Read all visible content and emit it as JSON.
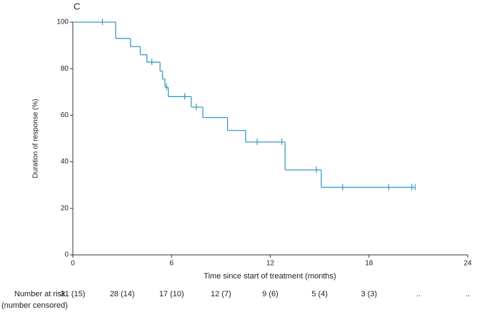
{
  "chart_data": {
    "type": "step",
    "panel_label": "C",
    "xlabel": "Time since start of treatment (months)",
    "ylabel": "Duration of response (%)",
    "color": "#3a9ac4",
    "x": [
      0,
      2.6,
      3.5,
      4.1,
      4.5,
      5.3,
      5.45,
      5.6,
      5.8,
      7.2,
      7.9,
      9.4,
      10.5,
      12.9,
      15.1,
      20.8
    ],
    "values": [
      100,
      93,
      89.5,
      86,
      82.8,
      79,
      75.6,
      72,
      68,
      63.5,
      59,
      53.5,
      48.5,
      36.5,
      29,
      29
    ],
    "censored": {
      "x": [
        1.8,
        4.8,
        5.7,
        6.8,
        7.5,
        11.2,
        12.7,
        14.8,
        16.4,
        19.2,
        20.6,
        20.8
      ],
      "values": [
        100,
        82.8,
        72,
        68,
        63.5,
        48.5,
        48.5,
        36.5,
        29,
        29,
        29,
        29
      ]
    },
    "xlim": [
      0,
      24
    ],
    "xticks": [
      0,
      6,
      12,
      18,
      24
    ],
    "ylim": [
      0,
      100
    ],
    "yticks": [
      0,
      20,
      40,
      60,
      80,
      100
    ],
    "risk_table": {
      "title": "Number at risk",
      "subtitle": "(number censored)",
      "x": [
        0,
        3,
        6,
        9,
        12,
        15,
        18,
        21,
        24
      ],
      "labels": [
        "31 (15)",
        "28 (14)",
        "17 (10)",
        "12 (7)",
        "9 (6)",
        "5 (4)",
        "3 (3)",
        "..",
        ".."
      ]
    }
  }
}
